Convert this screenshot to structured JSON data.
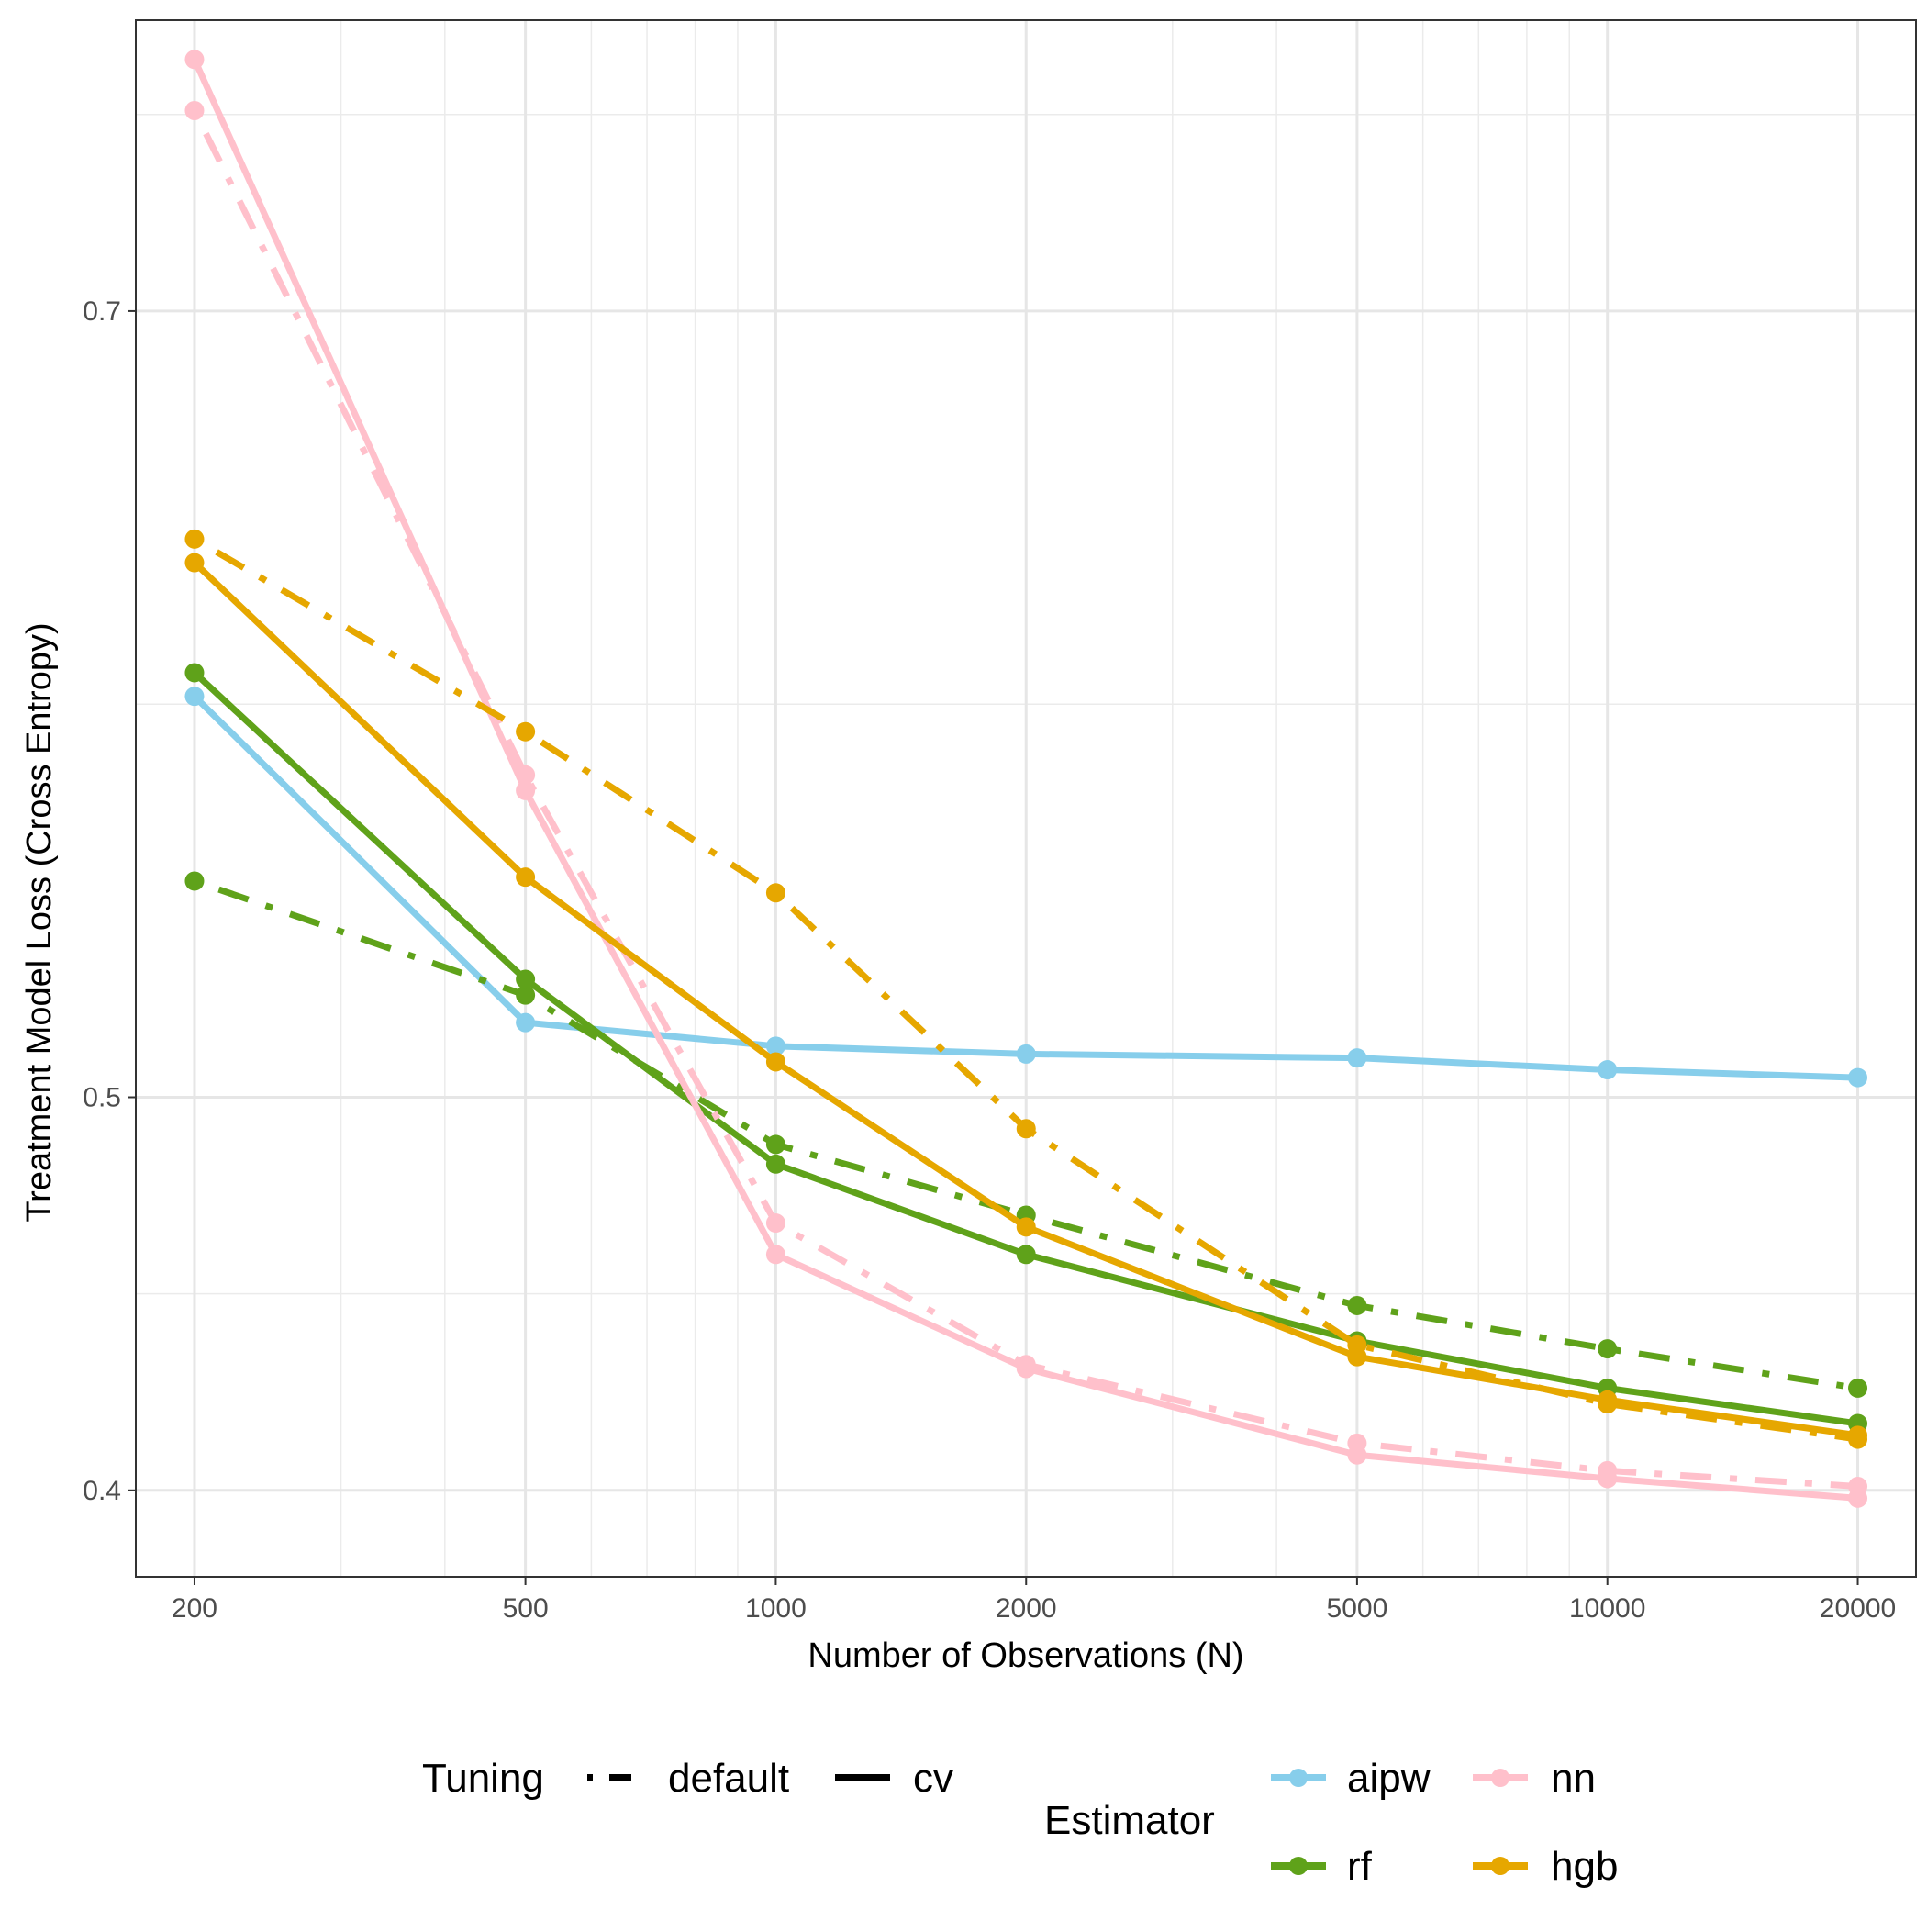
{
  "chart_data": {
    "type": "line",
    "xlabel": "Number of Observations (N)",
    "ylabel": "Treatment Model Loss (Cross Entropy)",
    "x_scale": "log10",
    "x_ticks": [
      200,
      500,
      1000,
      2000,
      5000,
      10000,
      20000
    ],
    "x_tick_labels": [
      "200",
      "500",
      "1000",
      "2000",
      "5000",
      "10000",
      "20000"
    ],
    "y_ticks": [
      0.4,
      0.5,
      0.7
    ],
    "y_tick_labels": [
      "0.4",
      "0.5",
      "0.7"
    ],
    "y_minor_ticks": [
      0.45,
      0.6,
      0.75
    ],
    "xlim": [
      170,
      23500
    ],
    "ylim": [
      0.378,
      0.774
    ],
    "x": [
      200,
      500,
      1000,
      2000,
      5000,
      10000,
      20000
    ],
    "series": [
      {
        "estimator": "aipw",
        "tuning": "cv",
        "color": "#87CEEB",
        "values": [
          0.602,
          0.519,
          0.513,
          0.511,
          0.51,
          0.507,
          0.505
        ]
      },
      {
        "estimator": "rf",
        "tuning": "default",
        "color": "#5FA21A",
        "values": [
          0.555,
          0.526,
          0.488,
          0.47,
          0.447,
          0.436,
          0.426
        ]
      },
      {
        "estimator": "rf",
        "tuning": "cv",
        "color": "#5FA21A",
        "values": [
          0.608,
          0.53,
          0.483,
          0.46,
          0.438,
          0.426,
          0.417
        ]
      },
      {
        "estimator": "nn",
        "tuning": "default",
        "color": "#FFC0CB",
        "values": [
          0.751,
          0.582,
          0.468,
          0.432,
          0.412,
          0.405,
          0.401
        ]
      },
      {
        "estimator": "nn",
        "tuning": "cv",
        "color": "#FFC0CB",
        "values": [
          0.764,
          0.578,
          0.46,
          0.431,
          0.409,
          0.403,
          0.398
        ]
      },
      {
        "estimator": "hgb",
        "tuning": "default",
        "color": "#E6A700",
        "values": [
          0.642,
          0.593,
          0.552,
          0.492,
          0.437,
          0.422,
          0.413
        ]
      },
      {
        "estimator": "hgb",
        "tuning": "cv",
        "color": "#E6A700",
        "values": [
          0.636,
          0.556,
          0.509,
          0.467,
          0.434,
          0.423,
          0.414
        ]
      }
    ],
    "legend": {
      "tuning_title": "Tuning",
      "tuning_entries": [
        {
          "label": "default",
          "linetype": "dotdash"
        },
        {
          "label": "cv",
          "linetype": "solid"
        }
      ],
      "estimator_title": "Estimator",
      "estimator_entries": [
        {
          "label": "aipw",
          "color": "#87CEEB"
        },
        {
          "label": "nn",
          "color": "#FFC0CB"
        },
        {
          "label": "rf",
          "color": "#5FA21A"
        },
        {
          "label": "hgb",
          "color": "#E6A700"
        }
      ],
      "placement": "bottom"
    },
    "grid": true
  }
}
